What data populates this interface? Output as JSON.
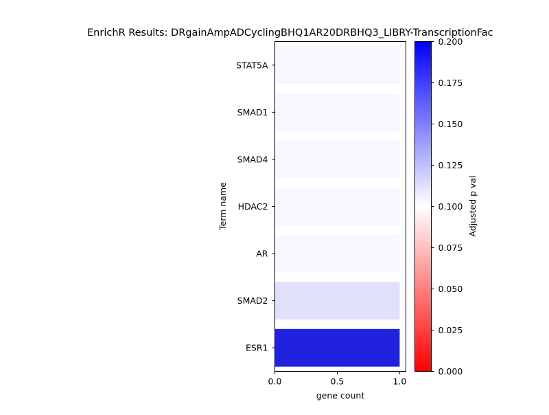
{
  "chart_data": {
    "type": "bar",
    "orientation": "horizontal",
    "title": "EnrichR Results: DRgainAmpADCyclingBHQ1AR20DRBHQ3_LIBRY-TranscriptionFac",
    "xlabel": "gene count",
    "ylabel": "Term name",
    "xlim": [
      0,
      1.05
    ],
    "x_ticks": [
      0.0,
      0.5,
      1.0
    ],
    "x_tick_labels": [
      "0.0",
      "0.5",
      "1.0"
    ],
    "categories": [
      "STAT5A",
      "SMAD1",
      "SMAD4",
      "HDAC2",
      "AR",
      "SMAD2",
      "ESR1"
    ],
    "values": [
      1,
      1,
      1,
      1,
      1,
      1,
      1
    ],
    "bar_colors": [
      "#f7f7ff",
      "#f7f7ff",
      "#f7f7ff",
      "#f7f7ff",
      "#f7f7ff",
      "#e0e0fa",
      "#2121e0"
    ],
    "colorbar": {
      "label": "Adjusted p val",
      "range": [
        0.0,
        0.2
      ],
      "ticks": [
        0.0,
        0.025,
        0.05,
        0.075,
        0.1,
        0.125,
        0.15,
        0.175,
        0.2
      ],
      "tick_labels": [
        "0.000",
        "0.025",
        "0.050",
        "0.075",
        "0.100",
        "0.125",
        "0.150",
        "0.175",
        "0.200"
      ],
      "colormap": [
        "#ff0000",
        "#ffffff",
        "#0000ff"
      ]
    },
    "grid": false,
    "legend": "none"
  }
}
